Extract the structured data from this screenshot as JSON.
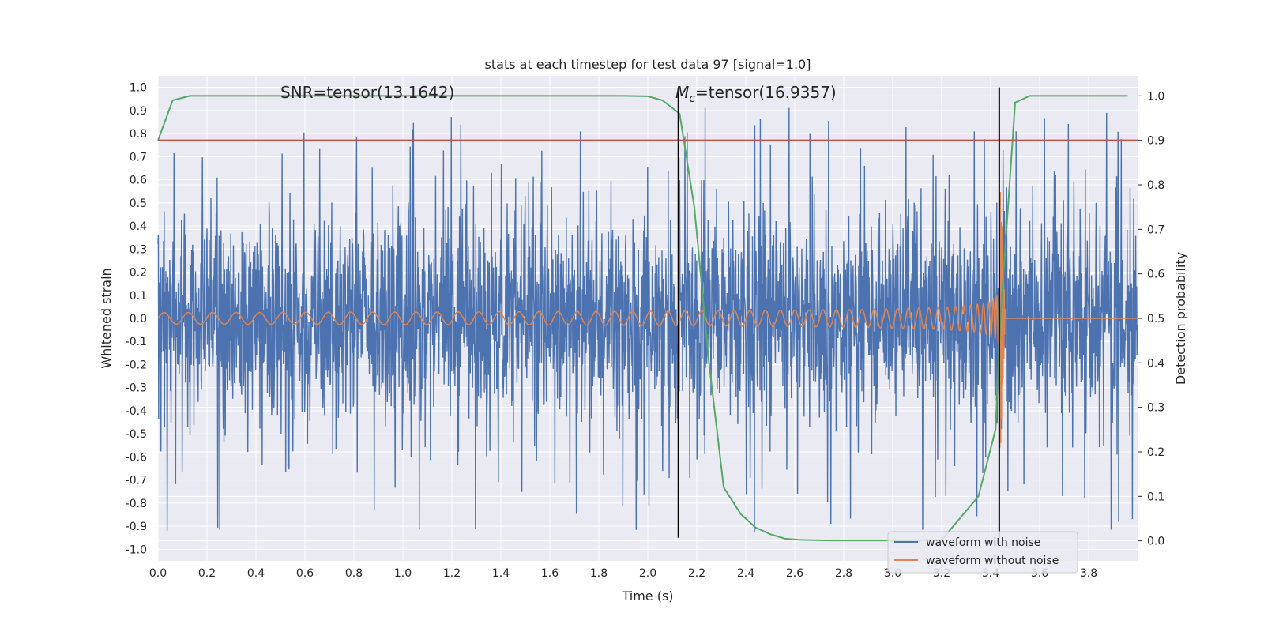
{
  "chart_data": {
    "type": "line",
    "title": "stats at each timestep for test data 97 [signal=1.0]",
    "xlabel": "Time (s)",
    "ylabel": "Whitened strain",
    "y2label": "Detection probability",
    "xlim": [
      0.0,
      4.0
    ],
    "ylim": [
      -1.05,
      1.05
    ],
    "y2lim": [
      -0.045,
      1.045
    ],
    "xticks": [
      "0.0",
      "0.2",
      "0.4",
      "0.6",
      "0.8",
      "1.0",
      "1.2",
      "1.4",
      "1.6",
      "1.8",
      "2.0",
      "2.2",
      "2.4",
      "2.6",
      "2.8",
      "3.0",
      "3.2",
      "3.4",
      "3.6",
      "3.8"
    ],
    "yticks": [
      "-1.0",
      "-0.9",
      "-0.8",
      "-0.7",
      "-0.6",
      "-0.5",
      "-0.4",
      "-0.3",
      "-0.2",
      "-0.1",
      "0.0",
      "0.1",
      "0.2",
      "0.3",
      "0.4",
      "0.5",
      "0.6",
      "0.7",
      "0.8",
      "0.9",
      "1.0"
    ],
    "y2ticks": [
      "0.0",
      "0.1",
      "0.2",
      "0.3",
      "0.4",
      "0.5",
      "0.6",
      "0.7",
      "0.8",
      "0.9",
      "1.0"
    ],
    "grid": true,
    "legend_position": "lower-right",
    "annotations": {
      "snr": "SNR=tensor(13.1642)",
      "mc_symbol": "M",
      "mc_subscript": "c",
      "mc_value": "=tensor(16.9357)"
    },
    "series": [
      {
        "name": "waveform with noise",
        "color": "#4c72b0",
        "x_range": [
          0.0,
          4.0
        ],
        "amplitude_envelope": 0.3,
        "peak_range": [
          -0.93,
          0.93
        ]
      },
      {
        "name": "waveform without noise",
        "color": "#dd8452",
        "x_range": [
          0.0,
          4.0
        ],
        "merger_time": 3.44,
        "start_amplitude": 0.025,
        "start_frequency_hz": 10,
        "peak_amplitude": 0.58
      },
      {
        "color": "#55a868",
        "axis": "right",
        "x": [
          0.0,
          0.06,
          0.13,
          0.2,
          0.5,
          1.0,
          1.5,
          1.9,
          2.0,
          2.06,
          2.13,
          2.19,
          2.25,
          2.31,
          2.38,
          2.44,
          2.5,
          2.56,
          2.63,
          2.75,
          2.95,
          3.2,
          3.35,
          3.42,
          3.44,
          3.5,
          3.56,
          3.7,
          3.96
        ],
        "values": [
          0.9,
          0.99,
          1.0,
          1.0,
          1.0,
          1.0,
          1.0,
          1.0,
          0.999,
          0.99,
          0.96,
          0.75,
          0.4,
          0.12,
          0.06,
          0.03,
          0.015,
          0.005,
          0.002,
          0.001,
          0.001,
          0.002,
          0.1,
          0.25,
          0.5,
          0.985,
          1.0,
          1.0,
          1.0
        ]
      },
      {
        "color": "#c44e52",
        "axis": "right",
        "type": "threshold",
        "value": 0.9
      }
    ],
    "vertical_lines": [
      {
        "x": 2.125,
        "y_range": [
          -0.95,
          1.0
        ],
        "color": "#000000"
      },
      {
        "x": 3.435,
        "y_range": [
          -0.95,
          1.0
        ],
        "color": "#000000"
      }
    ]
  }
}
